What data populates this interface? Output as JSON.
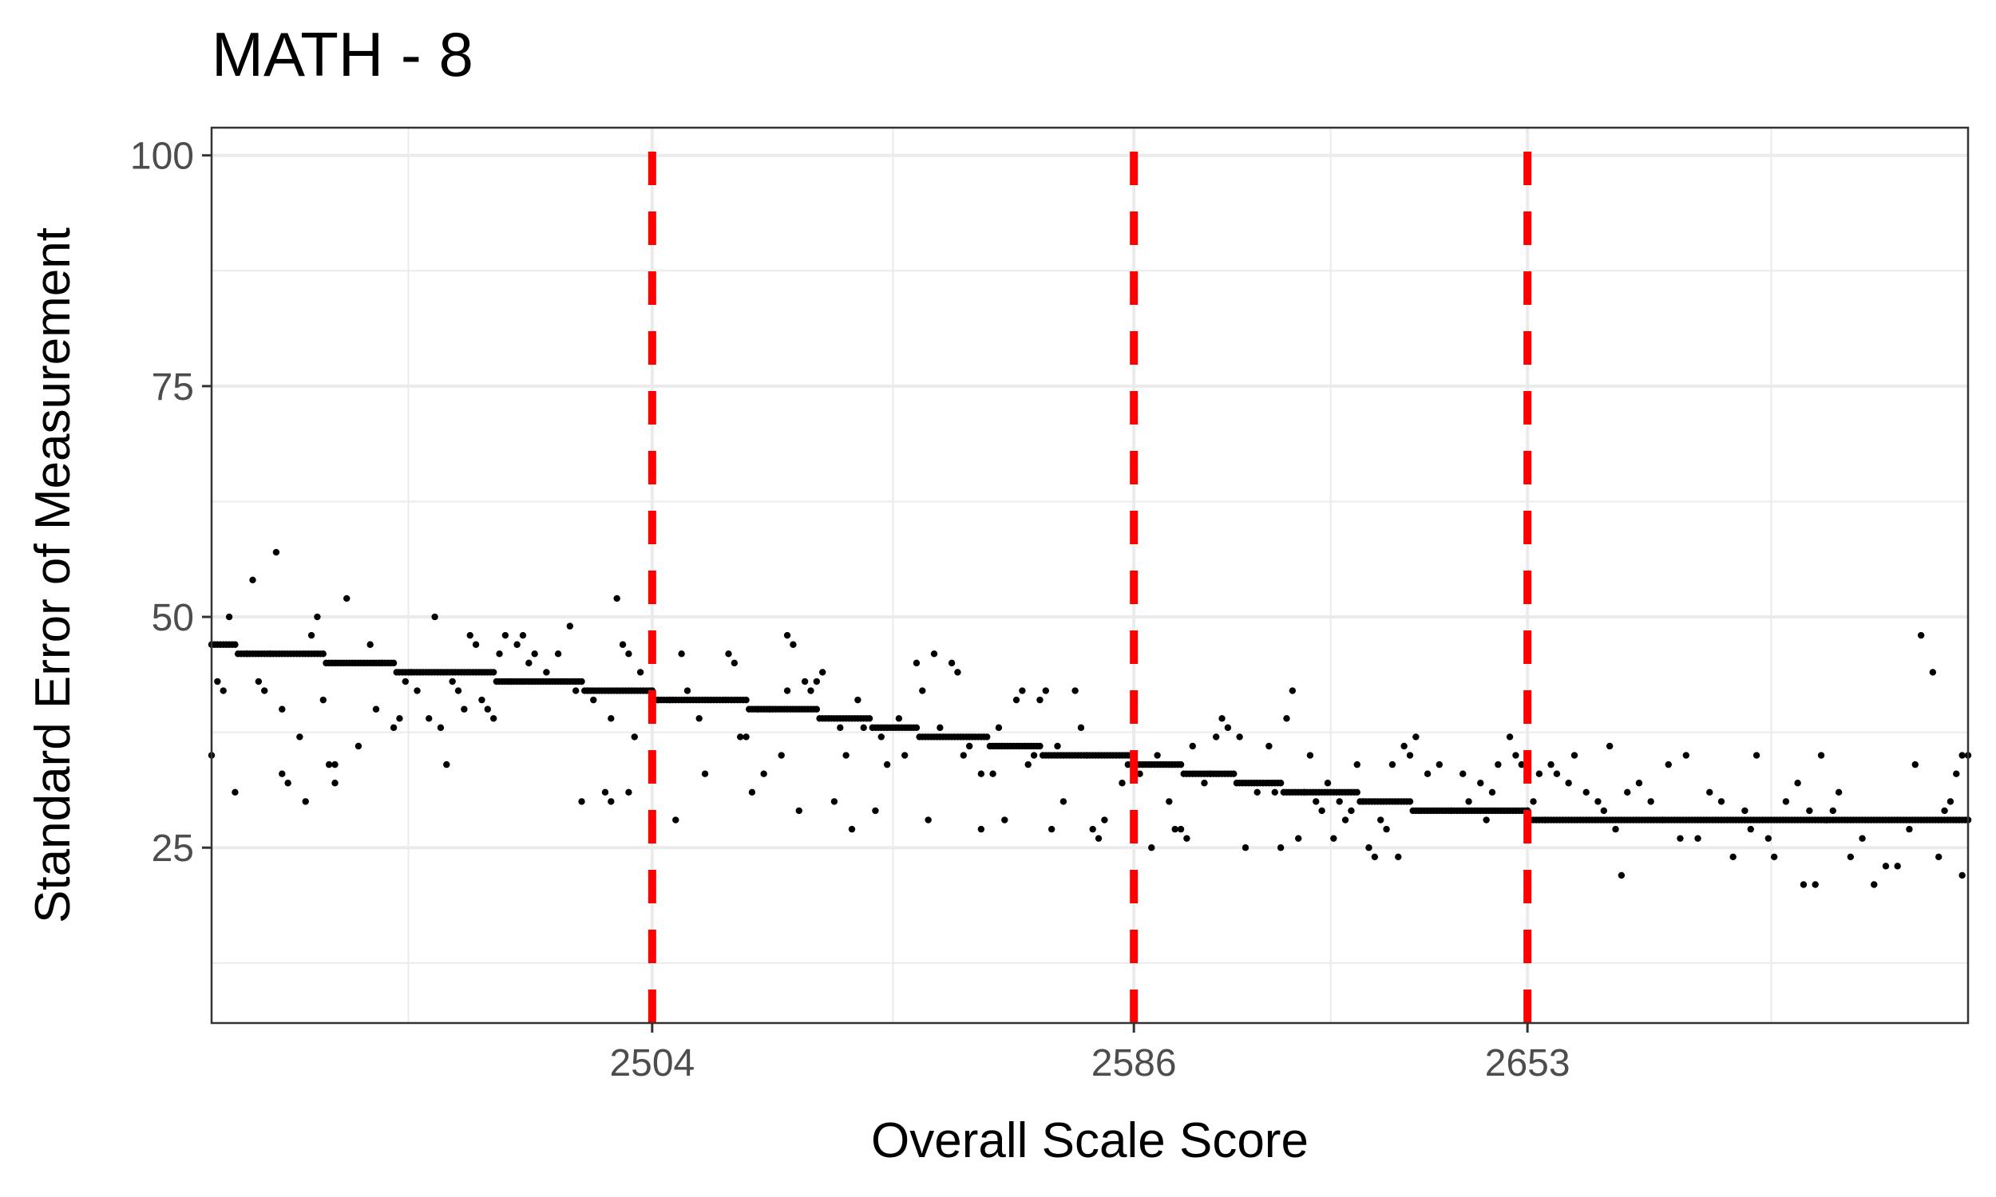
{
  "chart_data": {
    "type": "scatter",
    "title": "MATH - 8",
    "xlabel": "Overall Scale Score",
    "ylabel": "Standard Error of Measurement",
    "xlim": [
      2429,
      2728
    ],
    "ylim": [
      6,
      103
    ],
    "x_ticks": [
      2504,
      2586,
      2653
    ],
    "x_minor_gridlines": [
      2462.5,
      2545,
      2619.5,
      2694.5
    ],
    "y_ticks": [
      25,
      50,
      75,
      100
    ],
    "grid": true,
    "cut_scores": [
      2504,
      2586,
      2653
    ],
    "cut_score_color": "#ff0000",
    "point_color": "#000000",
    "background": "#ffffff",
    "grid_color": "#ebebeb",
    "panel_border_color": "#333333",
    "trend": [
      [
        2429,
        47
      ],
      [
        2433,
        47
      ],
      [
        2433.5,
        46
      ],
      [
        2445,
        46
      ],
      [
        2448,
        46
      ],
      [
        2448.5,
        45
      ],
      [
        2460,
        45
      ],
      [
        2460.5,
        44
      ],
      [
        2477,
        44
      ],
      [
        2477.5,
        43
      ],
      [
        2492,
        43
      ],
      [
        2492.5,
        42
      ],
      [
        2504,
        42
      ],
      [
        2504.5,
        41
      ],
      [
        2513,
        41
      ],
      [
        2513.5,
        41
      ],
      [
        2520,
        41
      ],
      [
        2520.5,
        40
      ],
      [
        2532,
        40
      ],
      [
        2532.5,
        39
      ],
      [
        2541,
        39
      ],
      [
        2541.5,
        38
      ],
      [
        2549,
        38
      ],
      [
        2549.5,
        37
      ],
      [
        2561,
        37
      ],
      [
        2561.5,
        36
      ],
      [
        2570,
        36
      ],
      [
        2570.5,
        35
      ],
      [
        2579,
        35
      ],
      [
        2579.5,
        35
      ],
      [
        2586,
        35
      ],
      [
        2586.5,
        34
      ],
      [
        2594,
        34
      ],
      [
        2594.5,
        33
      ],
      [
        2603,
        33
      ],
      [
        2603.5,
        32
      ],
      [
        2611,
        32
      ],
      [
        2611.5,
        31
      ],
      [
        2624,
        31
      ],
      [
        2624.5,
        30
      ],
      [
        2633,
        30
      ],
      [
        2633.5,
        29
      ],
      [
        2653,
        29
      ],
      [
        2653.5,
        28
      ],
      [
        2728,
        28
      ]
    ],
    "scatter_points": [
      [
        2429,
        35
      ],
      [
        2430,
        43
      ],
      [
        2431,
        42
      ],
      [
        2432,
        50
      ],
      [
        2433,
        31
      ],
      [
        2435,
        46
      ],
      [
        2436,
        54
      ],
      [
        2437,
        43
      ],
      [
        2438,
        42
      ],
      [
        2439,
        46
      ],
      [
        2440,
        57
      ],
      [
        2441,
        40
      ],
      [
        2441,
        33
      ],
      [
        2442,
        32
      ],
      [
        2444,
        37
      ],
      [
        2445,
        30
      ],
      [
        2446,
        48
      ],
      [
        2447,
        50
      ],
      [
        2448,
        41
      ],
      [
        2449,
        34
      ],
      [
        2450,
        34
      ],
      [
        2450,
        32
      ],
      [
        2452,
        52
      ],
      [
        2454,
        36
      ],
      [
        2456,
        47
      ],
      [
        2457,
        40
      ],
      [
        2458,
        45
      ],
      [
        2460,
        38
      ],
      [
        2461,
        39
      ],
      [
        2462,
        43
      ],
      [
        2463,
        44
      ],
      [
        2464,
        42
      ],
      [
        2466,
        39
      ],
      [
        2467,
        50
      ],
      [
        2468,
        38
      ],
      [
        2469,
        34
      ],
      [
        2470,
        43
      ],
      [
        2471,
        42
      ],
      [
        2472,
        40
      ],
      [
        2473,
        48
      ],
      [
        2474,
        47
      ],
      [
        2475,
        41
      ],
      [
        2476,
        40
      ],
      [
        2477,
        39
      ],
      [
        2478,
        46
      ],
      [
        2479,
        48
      ],
      [
        2480,
        43
      ],
      [
        2481,
        47
      ],
      [
        2482,
        48
      ],
      [
        2483,
        45
      ],
      [
        2484,
        46
      ],
      [
        2486,
        44
      ],
      [
        2488,
        46
      ],
      [
        2490,
        49
      ],
      [
        2491,
        42
      ],
      [
        2492,
        30
      ],
      [
        2493,
        42
      ],
      [
        2494,
        41
      ],
      [
        2496,
        31
      ],
      [
        2497,
        30
      ],
      [
        2497,
        39
      ],
      [
        2498,
        52
      ],
      [
        2499,
        47
      ],
      [
        2500,
        46
      ],
      [
        2500,
        31
      ],
      [
        2501,
        37
      ],
      [
        2502,
        44
      ],
      [
        2504,
        42
      ],
      [
        2505,
        41
      ],
      [
        2507,
        41
      ],
      [
        2508,
        28
      ],
      [
        2509,
        46
      ],
      [
        2510,
        42
      ],
      [
        2512,
        39
      ],
      [
        2513,
        33
      ],
      [
        2517,
        46
      ],
      [
        2518,
        45
      ],
      [
        2519,
        37
      ],
      [
        2520,
        37
      ],
      [
        2521,
        31
      ],
      [
        2522,
        40
      ],
      [
        2523,
        33
      ],
      [
        2524,
        40
      ],
      [
        2526,
        35
      ],
      [
        2527,
        42
      ],
      [
        2527,
        48
      ],
      [
        2528,
        47
      ],
      [
        2529,
        29
      ],
      [
        2530,
        43
      ],
      [
        2531,
        42
      ],
      [
        2532,
        43
      ],
      [
        2533,
        44
      ],
      [
        2535,
        30
      ],
      [
        2536,
        38
      ],
      [
        2537,
        35
      ],
      [
        2538,
        27
      ],
      [
        2539,
        41
      ],
      [
        2540,
        38
      ],
      [
        2542,
        29
      ],
      [
        2543,
        37
      ],
      [
        2544,
        34
      ],
      [
        2546,
        39
      ],
      [
        2547,
        35
      ],
      [
        2549,
        45
      ],
      [
        2550,
        42
      ],
      [
        2551,
        28
      ],
      [
        2552,
        46
      ],
      [
        2553,
        38
      ],
      [
        2555,
        45
      ],
      [
        2556,
        44
      ],
      [
        2557,
        35
      ],
      [
        2558,
        36
      ],
      [
        2560,
        33
      ],
      [
        2560,
        27
      ],
      [
        2562,
        33
      ],
      [
        2563,
        38
      ],
      [
        2564,
        28
      ],
      [
        2566,
        41
      ],
      [
        2567,
        42
      ],
      [
        2568,
        34
      ],
      [
        2569,
        35
      ],
      [
        2570,
        41
      ],
      [
        2571,
        42
      ],
      [
        2572,
        27
      ],
      [
        2573,
        36
      ],
      [
        2574,
        30
      ],
      [
        2576,
        42
      ],
      [
        2577,
        38
      ],
      [
        2578,
        35
      ],
      [
        2579,
        27
      ],
      [
        2580,
        26
      ],
      [
        2581,
        28
      ],
      [
        2584,
        32
      ],
      [
        2585,
        34
      ],
      [
        2587,
        33
      ],
      [
        2589,
        25
      ],
      [
        2590,
        35
      ],
      [
        2592,
        30
      ],
      [
        2593,
        27
      ],
      [
        2594,
        27
      ],
      [
        2595,
        26
      ],
      [
        2596,
        36
      ],
      [
        2598,
        32
      ],
      [
        2599,
        33
      ],
      [
        2600,
        37
      ],
      [
        2601,
        39
      ],
      [
        2602,
        38
      ],
      [
        2604,
        37
      ],
      [
        2605,
        25
      ],
      [
        2607,
        31
      ],
      [
        2609,
        36
      ],
      [
        2610,
        31
      ],
      [
        2611,
        25
      ],
      [
        2612,
        39
      ],
      [
        2613,
        42
      ],
      [
        2614,
        26
      ],
      [
        2615,
        31
      ],
      [
        2616,
        35
      ],
      [
        2617,
        30
      ],
      [
        2618,
        29
      ],
      [
        2619,
        32
      ],
      [
        2620,
        26
      ],
      [
        2621,
        30
      ],
      [
        2622,
        28
      ],
      [
        2623,
        29
      ],
      [
        2624,
        34
      ],
      [
        2625,
        30
      ],
      [
        2626,
        25
      ],
      [
        2627,
        24
      ],
      [
        2628,
        28
      ],
      [
        2629,
        27
      ],
      [
        2630,
        34
      ],
      [
        2631,
        24
      ],
      [
        2632,
        36
      ],
      [
        2633,
        35
      ],
      [
        2634,
        37
      ],
      [
        2636,
        33
      ],
      [
        2638,
        34
      ],
      [
        2640,
        29
      ],
      [
        2642,
        33
      ],
      [
        2643,
        30
      ],
      [
        2645,
        32
      ],
      [
        2646,
        28
      ],
      [
        2647,
        31
      ],
      [
        2648,
        34
      ],
      [
        2650,
        37
      ],
      [
        2651,
        35
      ],
      [
        2652,
        34
      ],
      [
        2653,
        29
      ],
      [
        2654,
        30
      ],
      [
        2655,
        33
      ],
      [
        2656,
        28
      ],
      [
        2657,
        34
      ],
      [
        2658,
        33
      ],
      [
        2660,
        32
      ],
      [
        2661,
        35
      ],
      [
        2663,
        31
      ],
      [
        2665,
        30
      ],
      [
        2666,
        29
      ],
      [
        2667,
        36
      ],
      [
        2668,
        27
      ],
      [
        2669,
        22
      ],
      [
        2670,
        31
      ],
      [
        2672,
        32
      ],
      [
        2674,
        30
      ],
      [
        2676,
        28
      ],
      [
        2677,
        34
      ],
      [
        2679,
        26
      ],
      [
        2680,
        35
      ],
      [
        2682,
        26
      ],
      [
        2684,
        31
      ],
      [
        2686,
        30
      ],
      [
        2688,
        24
      ],
      [
        2690,
        29
      ],
      [
        2691,
        27
      ],
      [
        2692,
        35
      ],
      [
        2694,
        26
      ],
      [
        2695,
        24
      ],
      [
        2697,
        30
      ],
      [
        2699,
        32
      ],
      [
        2700,
        21
      ],
      [
        2701,
        29
      ],
      [
        2702,
        21
      ],
      [
        2703,
        35
      ],
      [
        2704,
        28
      ],
      [
        2705,
        29
      ],
      [
        2706,
        31
      ],
      [
        2708,
        24
      ],
      [
        2710,
        26
      ],
      [
        2712,
        21
      ],
      [
        2714,
        23
      ],
      [
        2716,
        23
      ],
      [
        2718,
        27
      ],
      [
        2719,
        34
      ],
      [
        2720,
        48
      ],
      [
        2722,
        44
      ],
      [
        2723,
        24
      ],
      [
        2724,
        29
      ],
      [
        2725,
        30
      ],
      [
        2726,
        33
      ],
      [
        2727,
        35
      ],
      [
        2727,
        22
      ],
      [
        2728,
        35
      ],
      [
        2728,
        28
      ]
    ]
  }
}
